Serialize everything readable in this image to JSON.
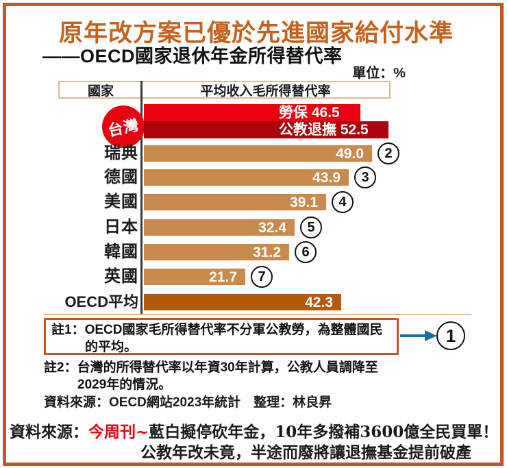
{
  "page": {
    "title": "原年改方案已優於先進國家給付水準",
    "subtitle": "——OECD國家退休年金所得替代率",
    "unit_label": "單位：%"
  },
  "table_header": {
    "country_col": "國家",
    "value_col": "平均收入毛所得替代率"
  },
  "taiwan": {
    "badge_label": "台灣",
    "bars": [
      {
        "name": "勞保",
        "value": 46.5,
        "display": "勞保 46.5",
        "color": "#e8000f"
      },
      {
        "name": "公教退撫",
        "value": 52.5,
        "display": "公教退撫 52.5",
        "color": "#ab040b"
      }
    ]
  },
  "rows": [
    {
      "country": "瑞典",
      "value": 49.0,
      "display": "49.0",
      "rank": "2",
      "dark": false
    },
    {
      "country": "德國",
      "value": 43.9,
      "display": "43.9",
      "rank": "3",
      "dark": false
    },
    {
      "country": "美國",
      "value": 39.1,
      "display": "39.1",
      "rank": "4",
      "dark": false
    },
    {
      "country": "日本",
      "value": 32.4,
      "display": "32.4",
      "rank": "5",
      "dark": false
    },
    {
      "country": "韓國",
      "value": 31.2,
      "display": "31.2",
      "rank": "6",
      "dark": false
    },
    {
      "country": "英國",
      "value": 21.7,
      "display": "21.7",
      "rank": "7",
      "dark": false
    },
    {
      "country": "OECD平均",
      "value": 42.3,
      "display": "42.3",
      "rank": null,
      "dark": true
    }
  ],
  "notes": {
    "note1": "註1：OECD國家毛所得替代率不分軍公教勞，為整體國民的平均。",
    "note1_marker": "1",
    "note2": "註2：台灣的所得替代率以年資30年計算，公教人員調降至2029年的情況。",
    "source": "資料來源：OECD網站2023年統計　整理：林良昇"
  },
  "footer": {
    "prefix": "資料來源：",
    "publication": "今周刊~",
    "line1_rest": "藍白擬停砍年金，10年多撥補3600億全民買單！",
    "line2": "公教年改未竟，半途而廢將讓退撫基金提前破產"
  },
  "colors": {
    "frame_border": "#c1562b",
    "title": "#c4611d",
    "bar": "#cb8a4d",
    "oecd_bar": "#b45a10",
    "labor_red": "#e8000f",
    "pension_dark_red": "#ab040b",
    "badge_red": "#e8000f",
    "arrow_teal": "#1d6f9b",
    "footer_red": "#e60012",
    "table_border_tan": "#dcba90"
  },
  "chart_data": {
    "type": "bar",
    "orientation": "horizontal",
    "title": "原年改方案已優於先進國家給付水準",
    "subtitle": "——OECD國家退休年金所得替代率",
    "unit": "%",
    "column_headers": [
      "國家",
      "平均收入毛所得替代率"
    ],
    "categories": [
      "台灣 勞保",
      "台灣 公教退撫",
      "瑞典",
      "德國",
      "美國",
      "日本",
      "韓國",
      "英國",
      "OECD平均"
    ],
    "values": [
      46.5,
      52.5,
      49.0,
      43.9,
      39.1,
      32.4,
      31.2,
      21.7,
      42.3
    ],
    "rank_annotations": {
      "瑞典": "②",
      "德國": "③",
      "美國": "④",
      "日本": "⑤",
      "韓國": "⑥",
      "英國": "⑦",
      "註1": "①"
    },
    "xlim": [
      0,
      55
    ],
    "grid": false,
    "legend": false,
    "xlabel": "",
    "ylabel": ""
  }
}
